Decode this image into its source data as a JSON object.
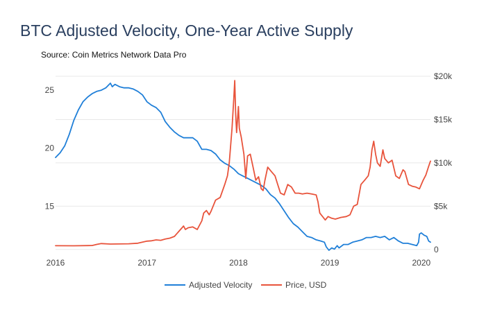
{
  "chart_data": {
    "type": "line",
    "title": "BTC Adjusted Velocity, One-Year Active Supply",
    "subtitle": "Source: Coin Metrics Network Data Pro",
    "xlabel": "",
    "ylabel_left": "",
    "ylabel_right": "",
    "x_range": [
      2016.0,
      2020.1
    ],
    "x_ticks": [
      2016,
      2017,
      2018,
      2019,
      2020
    ],
    "x_tick_labels": [
      "2016",
      "2017",
      "2018",
      "2019",
      "2020"
    ],
    "y_left_range": [
      10.9,
      26.2
    ],
    "y_left_ticks": [
      15,
      20,
      25
    ],
    "y_left_tick_labels": [
      "15",
      "20",
      "25"
    ],
    "y_right_range": [
      -500,
      20000
    ],
    "y_right_ticks": [
      0,
      5000,
      10000,
      15000,
      20000
    ],
    "y_right_tick_labels": [
      "0",
      "$5k",
      "$10k",
      "$15k",
      "$20k"
    ],
    "grid": true,
    "legend_position": "bottom-center",
    "series": [
      {
        "name": "Adjusted Velocity",
        "axis": "left",
        "color": "#1f7fd8",
        "points": [
          [
            2016.0,
            19.2
          ],
          [
            2016.05,
            19.6
          ],
          [
            2016.1,
            20.2
          ],
          [
            2016.15,
            21.2
          ],
          [
            2016.2,
            22.4
          ],
          [
            2016.25,
            23.3
          ],
          [
            2016.3,
            24.0
          ],
          [
            2016.35,
            24.4
          ],
          [
            2016.4,
            24.7
          ],
          [
            2016.45,
            24.9
          ],
          [
            2016.5,
            25.0
          ],
          [
            2016.55,
            25.2
          ],
          [
            2016.6,
            25.6
          ],
          [
            2016.62,
            25.3
          ],
          [
            2016.65,
            25.5
          ],
          [
            2016.7,
            25.3
          ],
          [
            2016.75,
            25.2
          ],
          [
            2016.8,
            25.2
          ],
          [
            2016.85,
            25.1
          ],
          [
            2016.9,
            24.9
          ],
          [
            2016.95,
            24.6
          ],
          [
            2017.0,
            24.0
          ],
          [
            2017.05,
            23.7
          ],
          [
            2017.1,
            23.5
          ],
          [
            2017.15,
            23.1
          ],
          [
            2017.2,
            22.3
          ],
          [
            2017.25,
            21.8
          ],
          [
            2017.3,
            21.4
          ],
          [
            2017.35,
            21.1
          ],
          [
            2017.4,
            20.9
          ],
          [
            2017.45,
            20.9
          ],
          [
            2017.5,
            20.9
          ],
          [
            2017.55,
            20.6
          ],
          [
            2017.6,
            19.9
          ],
          [
            2017.65,
            19.9
          ],
          [
            2017.7,
            19.8
          ],
          [
            2017.75,
            19.5
          ],
          [
            2017.8,
            19.0
          ],
          [
            2017.85,
            18.7
          ],
          [
            2017.9,
            18.5
          ],
          [
            2017.95,
            18.2
          ],
          [
            2018.0,
            17.8
          ],
          [
            2018.05,
            17.6
          ],
          [
            2018.1,
            17.4
          ],
          [
            2018.15,
            17.2
          ],
          [
            2018.2,
            17.0
          ],
          [
            2018.25,
            16.8
          ],
          [
            2018.3,
            16.5
          ],
          [
            2018.35,
            16.0
          ],
          [
            2018.4,
            15.7
          ],
          [
            2018.45,
            15.2
          ],
          [
            2018.5,
            14.6
          ],
          [
            2018.55,
            14.0
          ],
          [
            2018.6,
            13.5
          ],
          [
            2018.65,
            13.2
          ],
          [
            2018.7,
            12.8
          ],
          [
            2018.75,
            12.4
          ],
          [
            2018.8,
            12.3
          ],
          [
            2018.85,
            12.1
          ],
          [
            2018.9,
            12.0
          ],
          [
            2018.94,
            11.9
          ],
          [
            2018.96,
            11.5
          ],
          [
            2018.99,
            11.2
          ],
          [
            2019.02,
            11.4
          ],
          [
            2019.05,
            11.3
          ],
          [
            2019.08,
            11.6
          ],
          [
            2019.1,
            11.4
          ],
          [
            2019.15,
            11.7
          ],
          [
            2019.2,
            11.7
          ],
          [
            2019.25,
            11.9
          ],
          [
            2019.3,
            12.0
          ],
          [
            2019.35,
            12.1
          ],
          [
            2019.4,
            12.3
          ],
          [
            2019.45,
            12.3
          ],
          [
            2019.5,
            12.4
          ],
          [
            2019.55,
            12.3
          ],
          [
            2019.6,
            12.4
          ],
          [
            2019.65,
            12.1
          ],
          [
            2019.7,
            12.3
          ],
          [
            2019.75,
            12.0
          ],
          [
            2019.8,
            11.8
          ],
          [
            2019.85,
            11.8
          ],
          [
            2019.9,
            11.7
          ],
          [
            2019.95,
            11.6
          ],
          [
            2019.97,
            11.9
          ],
          [
            2019.98,
            12.6
          ],
          [
            2020.0,
            12.7
          ],
          [
            2020.03,
            12.5
          ],
          [
            2020.06,
            12.4
          ],
          [
            2020.08,
            12.0
          ],
          [
            2020.1,
            11.9
          ]
        ]
      },
      {
        "name": "Price, USD",
        "axis": "right",
        "color": "#e8533b",
        "points": [
          [
            2016.0,
            430
          ],
          [
            2016.2,
            420
          ],
          [
            2016.4,
            450
          ],
          [
            2016.45,
            580
          ],
          [
            2016.5,
            680
          ],
          [
            2016.6,
            620
          ],
          [
            2016.8,
            650
          ],
          [
            2016.9,
            720
          ],
          [
            2017.0,
            960
          ],
          [
            2017.05,
            1000
          ],
          [
            2017.1,
            1100
          ],
          [
            2017.15,
            1050
          ],
          [
            2017.2,
            1200
          ],
          [
            2017.25,
            1300
          ],
          [
            2017.3,
            1500
          ],
          [
            2017.35,
            2100
          ],
          [
            2017.4,
            2700
          ],
          [
            2017.42,
            2300
          ],
          [
            2017.45,
            2500
          ],
          [
            2017.5,
            2600
          ],
          [
            2017.55,
            2300
          ],
          [
            2017.6,
            3300
          ],
          [
            2017.62,
            4200
          ],
          [
            2017.65,
            4500
          ],
          [
            2017.68,
            4000
          ],
          [
            2017.7,
            4400
          ],
          [
            2017.75,
            5700
          ],
          [
            2017.8,
            6000
          ],
          [
            2017.85,
            7500
          ],
          [
            2017.88,
            8500
          ],
          [
            2017.9,
            10000
          ],
          [
            2017.93,
            14000
          ],
          [
            2017.95,
            17500
          ],
          [
            2017.96,
            19500
          ],
          [
            2017.97,
            15500
          ],
          [
            2017.98,
            13500
          ],
          [
            2018.0,
            16500
          ],
          [
            2018.01,
            14000
          ],
          [
            2018.03,
            13000
          ],
          [
            2018.06,
            11000
          ],
          [
            2018.08,
            8200
          ],
          [
            2018.1,
            10800
          ],
          [
            2018.13,
            11000
          ],
          [
            2018.16,
            9500
          ],
          [
            2018.19,
            8000
          ],
          [
            2018.22,
            8400
          ],
          [
            2018.25,
            7000
          ],
          [
            2018.27,
            6800
          ],
          [
            2018.29,
            8000
          ],
          [
            2018.32,
            9500
          ],
          [
            2018.36,
            9000
          ],
          [
            2018.4,
            8500
          ],
          [
            2018.43,
            7500
          ],
          [
            2018.46,
            6500
          ],
          [
            2018.5,
            6300
          ],
          [
            2018.54,
            7500
          ],
          [
            2018.58,
            7200
          ],
          [
            2018.62,
            6500
          ],
          [
            2018.66,
            6500
          ],
          [
            2018.7,
            6400
          ],
          [
            2018.75,
            6500
          ],
          [
            2018.8,
            6400
          ],
          [
            2018.85,
            6300
          ],
          [
            2018.87,
            5500
          ],
          [
            2018.89,
            4200
          ],
          [
            2018.92,
            3800
          ],
          [
            2018.95,
            3400
          ],
          [
            2018.98,
            3800
          ],
          [
            2019.02,
            3600
          ],
          [
            2019.06,
            3500
          ],
          [
            2019.12,
            3700
          ],
          [
            2019.18,
            3800
          ],
          [
            2019.22,
            4000
          ],
          [
            2019.26,
            5000
          ],
          [
            2019.3,
            5200
          ],
          [
            2019.34,
            7500
          ],
          [
            2019.38,
            8000
          ],
          [
            2019.42,
            8500
          ],
          [
            2019.44,
            9500
          ],
          [
            2019.46,
            11500
          ],
          [
            2019.48,
            12500
          ],
          [
            2019.5,
            11000
          ],
          [
            2019.52,
            10000
          ],
          [
            2019.55,
            9600
          ],
          [
            2019.58,
            11500
          ],
          [
            2019.6,
            10500
          ],
          [
            2019.64,
            10000
          ],
          [
            2019.68,
            10300
          ],
          [
            2019.72,
            8500
          ],
          [
            2019.76,
            8200
          ],
          [
            2019.8,
            9200
          ],
          [
            2019.82,
            9000
          ],
          [
            2019.86,
            7500
          ],
          [
            2019.9,
            7300
          ],
          [
            2019.94,
            7200
          ],
          [
            2019.98,
            7000
          ],
          [
            2020.02,
            8000
          ],
          [
            2020.05,
            8600
          ],
          [
            2020.08,
            9600
          ],
          [
            2020.1,
            10200
          ]
        ]
      }
    ]
  }
}
